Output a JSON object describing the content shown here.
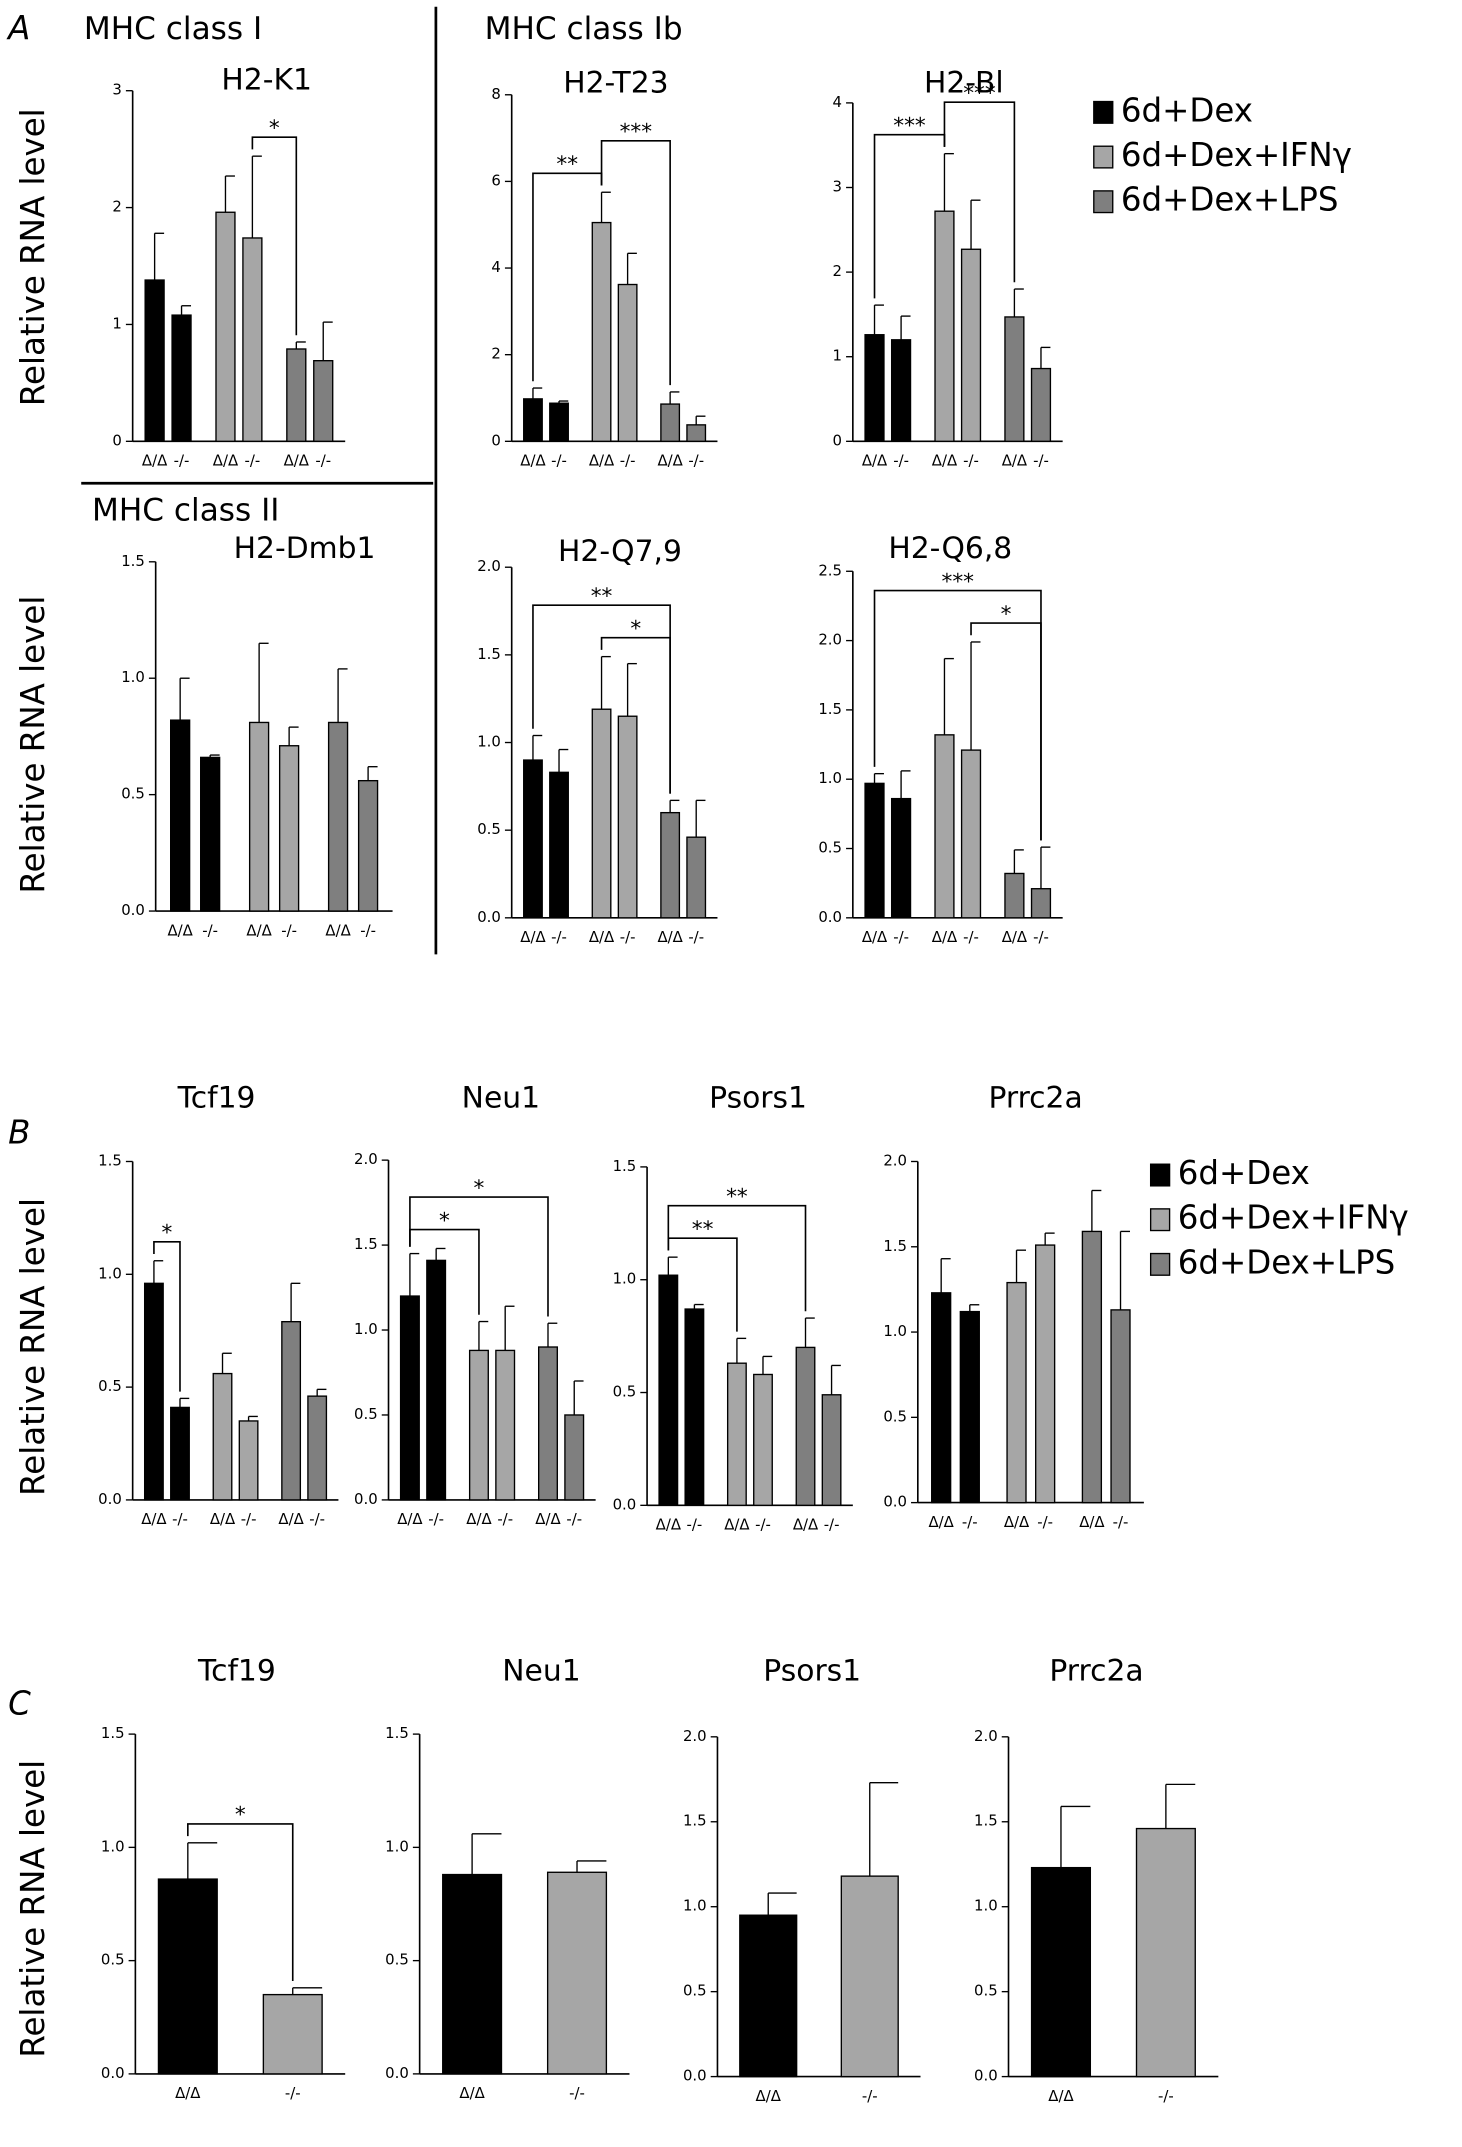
{
  "panels": {
    "a": "A",
    "b": "B",
    "c": "C"
  },
  "sections": {
    "class1": "MHC class I",
    "class1b": "MHC class Ib",
    "class2": "MHC class II"
  },
  "y_label": "Relative RNA level",
  "groups": [
    {
      "name": "6d+Dex",
      "color": "#000000"
    },
    {
      "name": "6d+Dex+IFNγ",
      "color": "#a6a6a6"
    },
    {
      "name": "6d+Dex+LPS",
      "color": "#7f7f7f"
    }
  ],
  "chart_data": [
    {
      "type": "grouped",
      "title": "H2-K1",
      "categories": [
        "Δ/Δ",
        "-/-"
      ],
      "ylim": [
        0,
        3
      ],
      "yticks": [
        0,
        1,
        2,
        3
      ],
      "series": [
        {
          "values": [
            1.38,
            1.08
          ],
          "errors": [
            0.4,
            0.08
          ]
        },
        {
          "values": [
            1.96,
            1.74
          ],
          "errors": [
            0.31,
            0.7
          ]
        },
        {
          "values": [
            0.79,
            0.69
          ],
          "errors": [
            0.06,
            0.33
          ]
        }
      ],
      "brackets": [
        {
          "label": "*",
          "bars": [
            3,
            4
          ]
        }
      ]
    },
    {
      "type": "grouped",
      "title": "H2-T23",
      "categories": [
        "Δ/Δ",
        "-/-"
      ],
      "ylim": [
        0,
        8
      ],
      "yticks": [
        0,
        2,
        4,
        6,
        8
      ],
      "series": [
        {
          "values": [
            0.98,
            0.88
          ],
          "errors": [
            0.25,
            0.05
          ]
        },
        {
          "values": [
            5.05,
            3.62
          ],
          "errors": [
            0.7,
            0.72
          ]
        },
        {
          "values": [
            0.86,
            0.38
          ],
          "errors": [
            0.28,
            0.2
          ]
        }
      ],
      "brackets": [
        {
          "label": "**",
          "bars": [
            0,
            2
          ]
        },
        {
          "label": "***",
          "bars": [
            2,
            4
          ]
        }
      ]
    },
    {
      "type": "grouped",
      "title": "H2-Bl",
      "categories": [
        "Δ/Δ",
        "-/-"
      ],
      "ylim": [
        0,
        4
      ],
      "yticks": [
        0,
        1,
        2,
        3,
        4
      ],
      "series": [
        {
          "values": [
            1.26,
            1.2
          ],
          "errors": [
            0.35,
            0.28
          ]
        },
        {
          "values": [
            2.72,
            2.27
          ],
          "errors": [
            0.68,
            0.58
          ]
        },
        {
          "values": [
            1.47,
            0.86
          ],
          "errors": [
            0.33,
            0.25
          ]
        }
      ],
      "brackets": [
        {
          "label": "***",
          "bars": [
            0,
            2
          ]
        },
        {
          "label": "***",
          "bars": [
            2,
            4
          ]
        }
      ]
    },
    {
      "type": "grouped",
      "title": "H2-Dmb1",
      "categories": [
        "Δ/Δ",
        "-/-"
      ],
      "ylim": [
        0,
        1.5
      ],
      "yticks": [
        {
          "value": 0,
          "label": "0.0"
        },
        0.5,
        {
          "value": 1,
          "label": "1.0"
        },
        1.5
      ],
      "series": [
        {
          "values": [
            0.82,
            0.66
          ],
          "errors": [
            0.18,
            0.01
          ]
        },
        {
          "values": [
            0.81,
            0.71
          ],
          "errors": [
            0.34,
            0.08
          ]
        },
        {
          "values": [
            0.81,
            0.56
          ],
          "errors": [
            0.23,
            0.06
          ]
        }
      ],
      "brackets": []
    },
    {
      "type": "grouped",
      "title": "H2-Q7,9",
      "categories": [
        "Δ/Δ",
        "-/-"
      ],
      "ylim": [
        0,
        2
      ],
      "yticks": [
        {
          "value": 0,
          "label": "0.0"
        },
        0.5,
        {
          "value": 1,
          "label": "1.0"
        },
        1.5,
        {
          "value": 2,
          "label": "2.0"
        }
      ],
      "series": [
        {
          "values": [
            0.9,
            0.83
          ],
          "errors": [
            0.14,
            0.13
          ]
        },
        {
          "values": [
            1.19,
            1.15
          ],
          "errors": [
            0.3,
            0.3
          ]
        },
        {
          "values": [
            0.6,
            0.46
          ],
          "errors": [
            0.07,
            0.21
          ]
        }
      ],
      "brackets": [
        {
          "label": "*",
          "bars": [
            2,
            4
          ]
        },
        {
          "label": "**",
          "bars": [
            0,
            4
          ]
        }
      ]
    },
    {
      "type": "grouped",
      "title": "H2-Q6,8",
      "categories": [
        "Δ/Δ",
        "-/-"
      ],
      "ylim": [
        0,
        2.5
      ],
      "yticks": [
        {
          "value": 0,
          "label": "0.0"
        },
        0.5,
        {
          "value": 1,
          "label": "1.0"
        },
        1.5,
        {
          "value": 2,
          "label": "2.0"
        },
        2.5
      ],
      "series": [
        {
          "values": [
            0.97,
            0.86
          ],
          "errors": [
            0.07,
            0.2
          ]
        },
        {
          "values": [
            1.32,
            1.21
          ],
          "errors": [
            0.55,
            0.78
          ]
        },
        {
          "values": [
            0.32,
            0.21
          ],
          "errors": [
            0.17,
            0.3
          ]
        }
      ],
      "brackets": [
        {
          "label": "*",
          "bars": [
            3,
            5
          ]
        },
        {
          "label": "***",
          "bars": [
            0,
            5
          ]
        }
      ]
    },
    {
      "type": "grouped",
      "title": "Tcf19",
      "categories": [
        "Δ/Δ",
        "-/-"
      ],
      "ylim": [
        0,
        1.5
      ],
      "yticks": [
        {
          "value": 0,
          "label": "0.0"
        },
        0.5,
        {
          "value": 1,
          "label": "1.0"
        },
        1.5
      ],
      "series": [
        {
          "values": [
            0.96,
            0.41
          ],
          "errors": [
            0.1,
            0.04
          ]
        },
        {
          "values": [
            0.56,
            0.35
          ],
          "errors": [
            0.09,
            0.02
          ]
        },
        {
          "values": [
            0.79,
            0.46
          ],
          "errors": [
            0.17,
            0.03
          ]
        }
      ],
      "brackets": [
        {
          "label": "*",
          "bars": [
            0,
            1
          ]
        }
      ]
    },
    {
      "type": "grouped",
      "title": "Neu1",
      "categories": [
        "Δ/Δ",
        "-/-"
      ],
      "ylim": [
        0,
        2
      ],
      "yticks": [
        {
          "value": 0,
          "label": "0.0"
        },
        0.5,
        {
          "value": 1,
          "label": "1.0"
        },
        1.5,
        {
          "value": 2,
          "label": "2.0"
        }
      ],
      "series": [
        {
          "values": [
            1.2,
            1.41
          ],
          "errors": [
            0.25,
            0.07
          ]
        },
        {
          "values": [
            0.88,
            0.88
          ],
          "errors": [
            0.17,
            0.26
          ]
        },
        {
          "values": [
            0.9,
            0.5
          ],
          "errors": [
            0.14,
            0.2
          ]
        }
      ],
      "brackets": [
        {
          "label": "*",
          "bars": [
            0,
            2
          ]
        },
        {
          "label": "*",
          "bars": [
            0,
            4
          ]
        }
      ]
    },
    {
      "type": "grouped",
      "title": "Psors1",
      "categories": [
        "Δ/Δ",
        "-/-"
      ],
      "ylim": [
        0,
        1.5
      ],
      "yticks": [
        {
          "value": 0,
          "label": "0.0"
        },
        0.5,
        {
          "value": 1,
          "label": "1.0"
        },
        1.5
      ],
      "series": [
        {
          "values": [
            1.02,
            0.87
          ],
          "errors": [
            0.08,
            0.02
          ]
        },
        {
          "values": [
            0.63,
            0.58
          ],
          "errors": [
            0.11,
            0.08
          ]
        },
        {
          "values": [
            0.7,
            0.49
          ],
          "errors": [
            0.13,
            0.13
          ]
        }
      ],
      "brackets": [
        {
          "label": "**",
          "bars": [
            0,
            2
          ]
        },
        {
          "label": "**",
          "bars": [
            0,
            4
          ]
        }
      ]
    },
    {
      "type": "grouped",
      "title": "Prrc2a",
      "categories": [
        "Δ/Δ",
        "-/-"
      ],
      "ylim": [
        0,
        2
      ],
      "yticks": [
        {
          "value": 0,
          "label": "0.0"
        },
        0.5,
        {
          "value": 1,
          "label": "1.0"
        },
        1.5,
        {
          "value": 2,
          "label": "2.0"
        }
      ],
      "series": [
        {
          "values": [
            1.23,
            1.12
          ],
          "errors": [
            0.2,
            0.04
          ]
        },
        {
          "values": [
            1.29,
            1.51
          ],
          "errors": [
            0.19,
            0.07
          ]
        },
        {
          "values": [
            1.59,
            1.13
          ],
          "errors": [
            0.24,
            0.46
          ]
        }
      ],
      "brackets": []
    },
    {
      "type": "bar",
      "title": "Tcf19",
      "categories": [
        "Δ/Δ",
        "-/-"
      ],
      "values": [
        0.86,
        0.35
      ],
      "errors": [
        0.16,
        0.03
      ],
      "colors": [
        "#000000",
        "#a6a6a6"
      ],
      "ylim": [
        0,
        1.5
      ],
      "yticks": [
        {
          "value": 0,
          "label": "0.0"
        },
        0.5,
        {
          "value": 1,
          "label": "1.0"
        },
        1.5
      ],
      "brackets": [
        {
          "label": "*",
          "bars": [
            0,
            1
          ]
        }
      ]
    },
    {
      "type": "bar",
      "title": "Neu1",
      "categories": [
        "Δ/Δ",
        "-/-"
      ],
      "values": [
        0.88,
        0.89
      ],
      "errors": [
        0.18,
        0.05
      ],
      "colors": [
        "#000000",
        "#a6a6a6"
      ],
      "ylim": [
        0,
        1.5
      ],
      "yticks": [
        {
          "value": 0,
          "label": "0.0"
        },
        0.5,
        {
          "value": 1,
          "label": "1.0"
        },
        1.5
      ],
      "brackets": []
    },
    {
      "type": "bar",
      "title": "Psors1",
      "categories": [
        "Δ/Δ",
        "-/-"
      ],
      "values": [
        0.95,
        1.18
      ],
      "errors": [
        0.13,
        0.55
      ],
      "colors": [
        "#000000",
        "#a6a6a6"
      ],
      "ylim": [
        0,
        2
      ],
      "yticks": [
        {
          "value": 0,
          "label": "0.0"
        },
        0.5,
        {
          "value": 1,
          "label": "1.0"
        },
        1.5,
        {
          "value": 2,
          "label": "2.0"
        }
      ],
      "brackets": []
    },
    {
      "type": "bar",
      "title": "Prrc2a",
      "categories": [
        "Δ/Δ",
        "-/-"
      ],
      "values": [
        1.23,
        1.46
      ],
      "errors": [
        0.36,
        0.26
      ],
      "colors": [
        "#000000",
        "#a6a6a6"
      ],
      "ylim": [
        0,
        2
      ],
      "yticks": [
        {
          "value": 0,
          "label": "0.0"
        },
        0.5,
        {
          "value": 1,
          "label": "1.0"
        },
        1.5,
        {
          "value": 2,
          "label": "2.0"
        }
      ],
      "brackets": []
    }
  ]
}
